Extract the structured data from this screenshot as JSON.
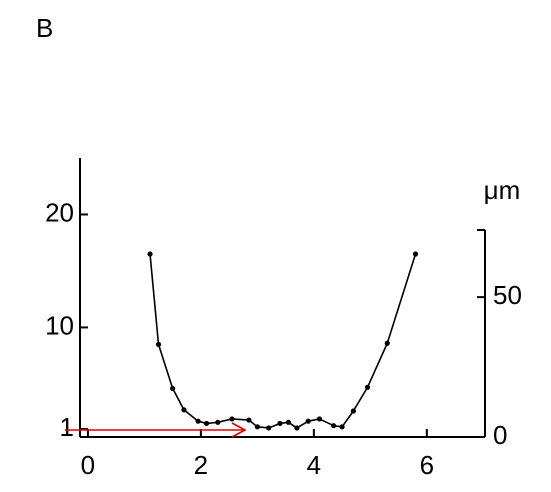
{
  "chart_data": {
    "type": "line",
    "panel_label": "B",
    "y2_label": "μm",
    "x": [
      1.1,
      1.25,
      1.5,
      1.7,
      1.95,
      2.1,
      2.3,
      2.55,
      2.85,
      3.0,
      3.2,
      3.4,
      3.55,
      3.7,
      3.9,
      4.1,
      4.35,
      4.5,
      4.7,
      4.95,
      5.3,
      5.8
    ],
    "series": [
      {
        "color": "#000000",
        "values": [
          16.5,
          8.5,
          4.6,
          2.7,
          1.7,
          1.5,
          1.6,
          1.9,
          1.8,
          1.2,
          1.1,
          1.5,
          1.6,
          1.1,
          1.7,
          1.9,
          1.3,
          1.2,
          2.6,
          4.7,
          8.6,
          16.5
        ]
      }
    ],
    "xlim": [
      -0.14,
      7.03
    ],
    "xticks": [
      0,
      2,
      4,
      6
    ],
    "ylim": [
      0.3,
      25
    ],
    "yticks": [
      1,
      10,
      20
    ],
    "y2lim": [
      0,
      74
    ],
    "y2ticks": [
      0,
      50
    ],
    "arrow_color": "#e00000"
  }
}
